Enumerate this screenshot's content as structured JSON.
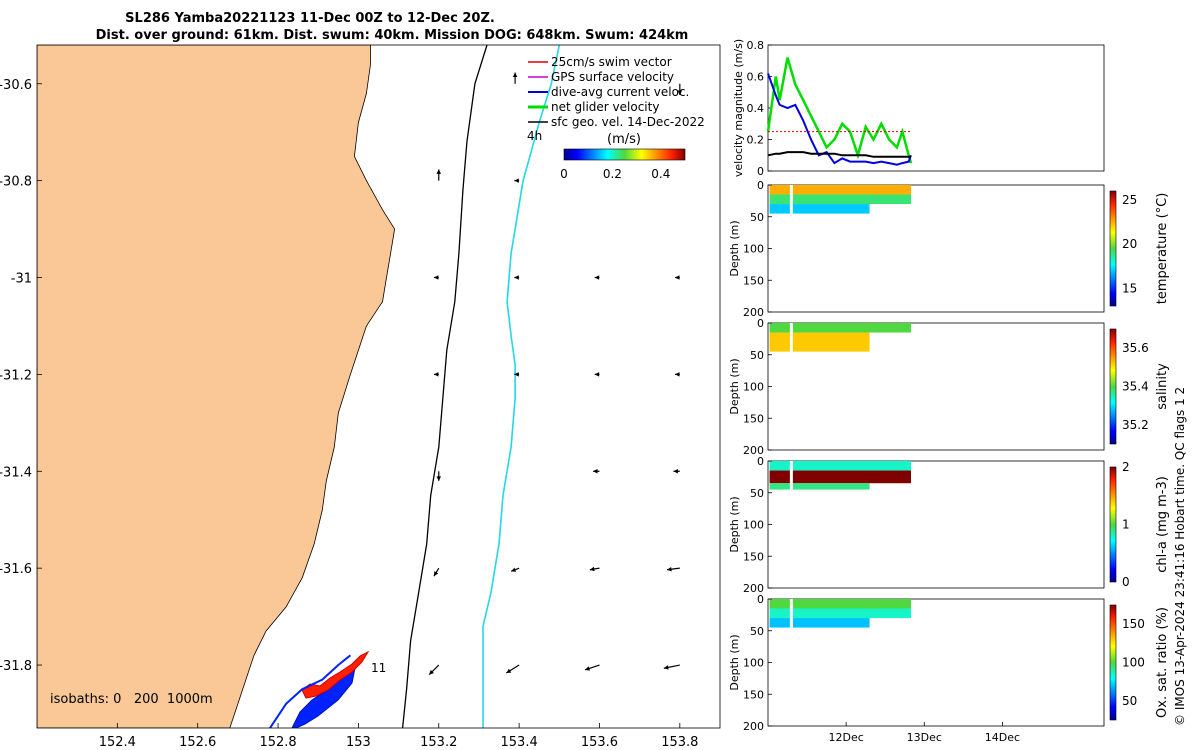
{
  "header": {
    "line1": "SL286 Yamba20221123 11-Dec 00Z to 12-Dec 20Z.",
    "line2": "Dist. over ground: 61km. Dist. swum: 40km. Mission DOG: 648km. Swum: 424km"
  },
  "chart_data": [
    {
      "type": "map",
      "name": "glider-track-map",
      "xlim": [
        152.2,
        153.9
      ],
      "ylim": [
        -31.93,
        -30.52
      ],
      "xticks": [
        "152.4",
        "152.6",
        "152.8",
        "153",
        "153.2",
        "153.4",
        "153.6",
        "153.8"
      ],
      "yticks": [
        "-30.6",
        "-30.8",
        "-31",
        "-31.2",
        "-31.4",
        "-31.6",
        "-31.8"
      ],
      "legend": [
        "25cm/s swim vector",
        "GPS surface velocity",
        "dive-avg current veloc.",
        "net glider velocity",
        "sfc geo. vel. 14-Dec-2022"
      ],
      "legend_colors": [
        "#e00000",
        "#cc00cc",
        "#0000e0",
        "#00dd00",
        "#000000"
      ],
      "colorbar": {
        "title": "(m/s)",
        "ticks": [
          "0",
          "0.2",
          "0.4"
        ],
        "range": [
          0,
          0.5
        ],
        "time_label": "4h"
      },
      "isobaths": "isobaths: 0   200  1000m",
      "track_label": "11",
      "coast": [
        [
          152.2,
          -30.52
        ],
        [
          153.03,
          -30.52
        ],
        [
          153.03,
          -30.56
        ],
        [
          153.02,
          -30.62
        ],
        [
          153.0,
          -30.68
        ],
        [
          152.99,
          -30.75
        ],
        [
          153.02,
          -30.8
        ],
        [
          153.06,
          -30.86
        ],
        [
          153.09,
          -30.9
        ],
        [
          153.08,
          -30.95
        ],
        [
          153.07,
          -31.0
        ],
        [
          153.06,
          -31.05
        ],
        [
          153.02,
          -31.1
        ],
        [
          153.0,
          -31.15
        ],
        [
          152.98,
          -31.2
        ],
        [
          152.95,
          -31.28
        ],
        [
          152.94,
          -31.35
        ],
        [
          152.92,
          -31.42
        ],
        [
          152.91,
          -31.48
        ],
        [
          152.89,
          -31.55
        ],
        [
          152.86,
          -31.62
        ],
        [
          152.82,
          -31.68
        ],
        [
          152.77,
          -31.73
        ],
        [
          152.74,
          -31.78
        ],
        [
          152.72,
          -31.83
        ],
        [
          152.7,
          -31.88
        ],
        [
          152.68,
          -31.93
        ],
        [
          152.2,
          -31.93
        ]
      ],
      "isobath_200": [
        [
          153.32,
          -30.52
        ],
        [
          153.29,
          -30.6
        ],
        [
          153.27,
          -30.72
        ],
        [
          153.26,
          -30.82
        ],
        [
          153.25,
          -30.95
        ],
        [
          153.24,
          -31.05
        ],
        [
          153.22,
          -31.15
        ],
        [
          153.21,
          -31.25
        ],
        [
          153.2,
          -31.35
        ],
        [
          153.18,
          -31.45
        ],
        [
          153.17,
          -31.55
        ],
        [
          153.15,
          -31.65
        ],
        [
          153.13,
          -31.75
        ],
        [
          153.12,
          -31.85
        ],
        [
          153.11,
          -31.93
        ]
      ],
      "isobath_1000": [
        [
          153.5,
          -30.52
        ],
        [
          153.48,
          -30.6
        ],
        [
          153.45,
          -30.68
        ],
        [
          153.43,
          -30.74
        ],
        [
          153.41,
          -30.8
        ],
        [
          153.39,
          -30.9
        ],
        [
          153.38,
          -30.95
        ],
        [
          153.37,
          -31.05
        ],
        [
          153.38,
          -31.12
        ],
        [
          153.39,
          -31.18
        ],
        [
          153.39,
          -31.25
        ],
        [
          153.38,
          -31.35
        ],
        [
          153.36,
          -31.45
        ],
        [
          153.35,
          -31.55
        ],
        [
          153.33,
          -31.65
        ],
        [
          153.31,
          -31.72
        ],
        [
          153.31,
          -31.8
        ],
        [
          153.31,
          -31.93
        ]
      ],
      "current_vectors": [
        {
          "lon": 153.39,
          "lat": -30.6,
          "u": 0,
          "v": 0.07
        },
        {
          "lon": 153.8,
          "lat": -30.6,
          "u": 0,
          "v": -0.07
        },
        {
          "lon": 153.2,
          "lat": -30.8,
          "u": 0,
          "v": 0.07
        },
        {
          "lon": 153.4,
          "lat": -30.8,
          "u": -0.03,
          "v": 0
        },
        {
          "lon": 153.2,
          "lat": -31,
          "u": -0.03,
          "v": 0
        },
        {
          "lon": 153.4,
          "lat": -31,
          "u": -0.03,
          "v": 0
        },
        {
          "lon": 153.6,
          "lat": -31,
          "u": -0.03,
          "v": 0
        },
        {
          "lon": 153.8,
          "lat": -31,
          "u": -0.03,
          "v": 0
        },
        {
          "lon": 153.2,
          "lat": -31.2,
          "u": -0.03,
          "v": 0
        },
        {
          "lon": 153.4,
          "lat": -31.2,
          "u": -0.03,
          "v": 0
        },
        {
          "lon": 153.6,
          "lat": -31.2,
          "u": -0.03,
          "v": 0
        },
        {
          "lon": 153.8,
          "lat": -31.2,
          "u": -0.03,
          "v": 0
        },
        {
          "lon": 153.2,
          "lat": -31.4,
          "u": 0,
          "v": -0.06
        },
        {
          "lon": 153.6,
          "lat": -31.4,
          "u": -0.04,
          "v": 0
        },
        {
          "lon": 153.8,
          "lat": -31.4,
          "u": -0.04,
          "v": 0
        },
        {
          "lon": 153.2,
          "lat": -31.6,
          "u": -0.03,
          "v": -0.05
        },
        {
          "lon": 153.4,
          "lat": -31.6,
          "u": -0.05,
          "v": -0.02
        },
        {
          "lon": 153.6,
          "lat": -31.6,
          "u": -0.06,
          "v": -0.01
        },
        {
          "lon": 153.8,
          "lat": -31.6,
          "u": -0.08,
          "v": -0.01
        },
        {
          "lon": 153.2,
          "lat": -31.8,
          "u": -0.06,
          "v": -0.06
        },
        {
          "lon": 153.4,
          "lat": -31.8,
          "u": -0.08,
          "v": -0.05
        },
        {
          "lon": 153.6,
          "lat": -31.8,
          "u": -0.09,
          "v": -0.03
        },
        {
          "lon": 153.8,
          "lat": -31.8,
          "u": -0.1,
          "v": -0.02
        }
      ],
      "glider_track": [
        [
          152.78,
          -31.93
        ],
        [
          152.82,
          -31.88
        ],
        [
          152.86,
          -31.85
        ],
        [
          152.91,
          -31.83
        ],
        [
          152.95,
          -31.8
        ],
        [
          152.98,
          -31.78
        ]
      ]
    },
    {
      "type": "line",
      "name": "velocity-magnitude",
      "ylabel": "velocity magnitude (m/s)",
      "ylim": [
        0,
        0.8
      ],
      "yticks": [
        "0",
        "0.2",
        "0.4",
        "0.6",
        "0.8"
      ],
      "x_days": [
        0,
        0.1,
        0.15,
        0.25,
        0.35,
        0.45,
        0.55,
        0.65,
        0.75,
        0.85,
        0.95,
        1.05,
        1.15,
        1.25,
        1.35,
        1.45,
        1.55,
        1.65,
        1.72,
        1.8,
        1.83
      ],
      "series": [
        {
          "name": "net glider velocity",
          "color": "#00dd00",
          "values": [
            0.25,
            0.6,
            0.45,
            0.72,
            0.55,
            0.45,
            0.35,
            0.25,
            0.15,
            0.2,
            0.3,
            0.25,
            0.1,
            0.28,
            0.2,
            0.3,
            0.2,
            0.15,
            0.25,
            0.1,
            0.05
          ]
        },
        {
          "name": "dive-avg current veloc.",
          "color": "#0000e0",
          "values": [
            0.62,
            0.48,
            0.42,
            0.4,
            0.42,
            0.32,
            0.2,
            0.1,
            0.12,
            0.05,
            0.08,
            0.06,
            0.06,
            0.06,
            0.05,
            0.06,
            0.05,
            0.04,
            0.05,
            0.06,
            0.1
          ]
        },
        {
          "name": "25cm/s swim vector",
          "color": "#e00000",
          "values": [
            0.25,
            0.25,
            0.25,
            0.25,
            0.25,
            0.25,
            0.25,
            0.25,
            0.25,
            0.25,
            0.25,
            0.25,
            0.25,
            0.25,
            0.25,
            0.25,
            0.25,
            0.25,
            0.25,
            0.25,
            0.25
          ]
        },
        {
          "name": "sfc geo. vel.",
          "color": "#000000",
          "values": [
            0.1,
            0.11,
            0.11,
            0.12,
            0.12,
            0.12,
            0.11,
            0.11,
            0.11,
            0.11,
            0.1,
            0.1,
            0.1,
            0.1,
            0.09,
            0.09,
            0.09,
            0.09,
            0.09,
            0.09,
            0.09
          ]
        }
      ]
    },
    {
      "type": "heatmap",
      "name": "temperature-section",
      "clabel": "temperature (°C)",
      "ylabel": "Depth (m)",
      "yticks": [
        "0",
        "50",
        "100",
        "150",
        "200"
      ],
      "cticks": [
        "15",
        "20",
        "25"
      ],
      "crange": [
        13,
        26
      ],
      "layers": [
        {
          "depth": [
            0,
            15
          ],
          "value": 22.5
        },
        {
          "depth": [
            15,
            30
          ],
          "value": 19
        },
        {
          "depth": [
            30,
            45
          ],
          "value": 17
        }
      ]
    },
    {
      "type": "heatmap",
      "name": "salinity-section",
      "clabel": "salinity",
      "ylabel": "Depth (m)",
      "yticks": [
        "0",
        "50",
        "100",
        "150",
        "200"
      ],
      "cticks": [
        "35.2",
        "35.4",
        "35.6"
      ],
      "crange": [
        35.1,
        35.7
      ],
      "layers": [
        {
          "depth": [
            0,
            15
          ],
          "value": 35.4
        },
        {
          "depth": [
            15,
            45
          ],
          "value": 35.52
        }
      ]
    },
    {
      "type": "heatmap",
      "name": "chla-section",
      "clabel": "chl-a (mg m-3)",
      "ylabel": "Depth (m)",
      "yticks": [
        "0",
        "50",
        "100",
        "150",
        "200"
      ],
      "cticks": [
        "0",
        "1",
        "2"
      ],
      "crange": [
        0,
        2
      ],
      "layers": [
        {
          "depth": [
            0,
            15
          ],
          "value": 0.8
        },
        {
          "depth": [
            15,
            35
          ],
          "value": 2
        },
        {
          "depth": [
            35,
            45
          ],
          "value": 0.9
        }
      ]
    },
    {
      "type": "heatmap",
      "name": "oxygen-section",
      "clabel": "Ox. sat. ratio (%)",
      "ylabel": "Depth (m)",
      "yticks": [
        "0",
        "50",
        "100",
        "150",
        "200"
      ],
      "cticks": [
        "50",
        "100",
        "150"
      ],
      "crange": [
        25,
        175
      ],
      "layers": [
        {
          "depth": [
            0,
            15
          ],
          "value": 100
        },
        {
          "depth": [
            15,
            30
          ],
          "value": 85
        },
        {
          "depth": [
            30,
            45
          ],
          "value": 70
        }
      ]
    }
  ],
  "time_axis": {
    "ticks": [
      "12Dec",
      "13Dec",
      "14Dec"
    ],
    "tick_days": [
      1,
      2,
      3
    ],
    "range_days": [
      0,
      4.3
    ]
  },
  "footer": {
    "credit": "© IMOS 13-Apr-2024 23:41:16 Hobart time. QC flags 1  2"
  },
  "colors": {
    "land": "#f9c896",
    "isobath_200": "#000000",
    "isobath_1000": "#22d8e6",
    "track": "#0022ff",
    "swim": "#ff0000"
  }
}
